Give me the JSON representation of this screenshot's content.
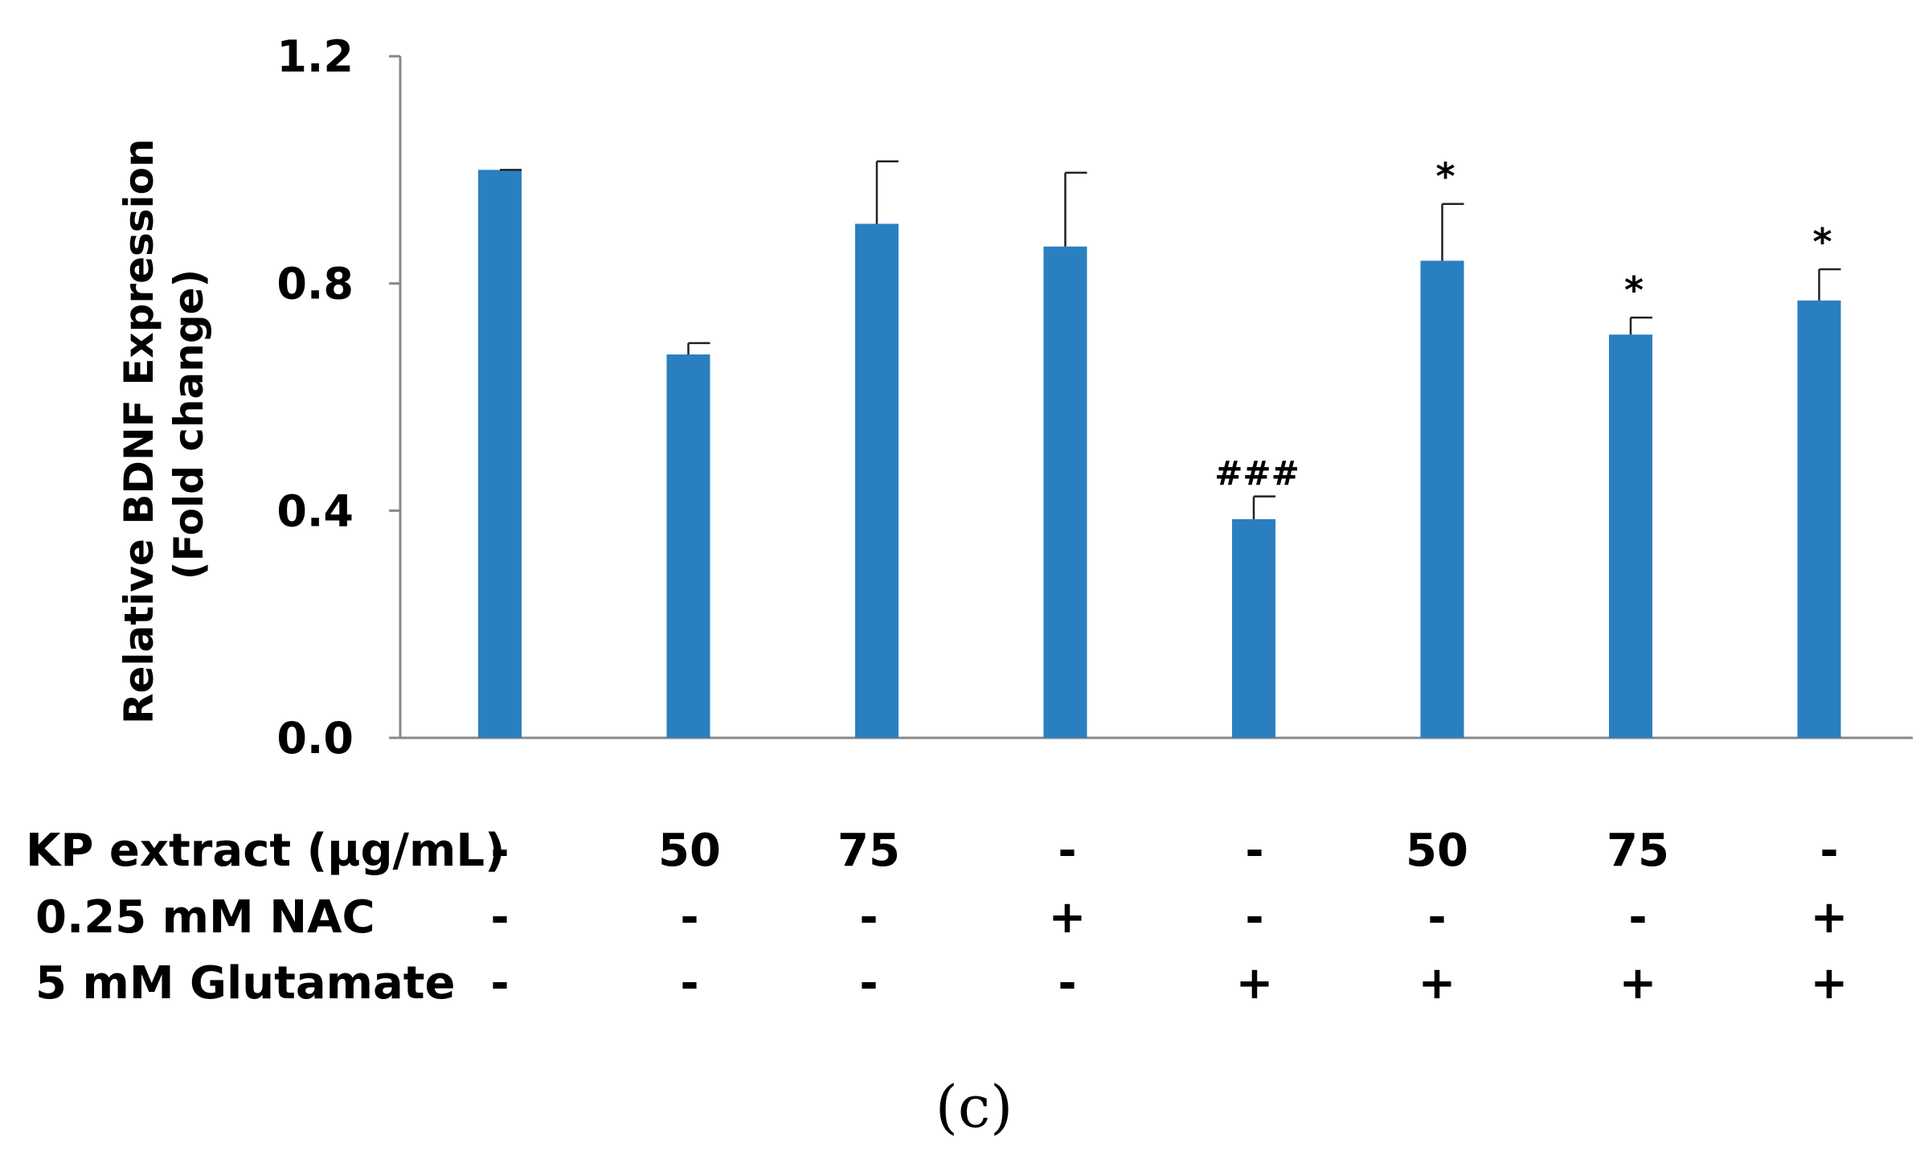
{
  "chart_data": {
    "type": "bar",
    "ylabel_lines": [
      "Relative BDNF Expression",
      "(Fold change)"
    ],
    "ylim": [
      0.0,
      1.2
    ],
    "yticks": [
      "0.0",
      "0.4",
      "0.8",
      "1.2"
    ],
    "grid": false,
    "bar_color": "#2a7fc1",
    "values": [
      1.0,
      0.675,
      0.905,
      0.865,
      0.385,
      0.84,
      0.71,
      0.77
    ],
    "errors": [
      0.0,
      0.02,
      0.11,
      0.13,
      0.04,
      0.1,
      0.03,
      0.055
    ],
    "annotations": [
      "",
      "",
      "",
      "",
      "###",
      "*",
      "*",
      "*"
    ],
    "conditions": [
      {
        "label": "KP extract (µg/mL)",
        "values": [
          "-",
          "50",
          "75",
          "-",
          "-",
          "50",
          "75",
          "-"
        ]
      },
      {
        "label": "0.25 mM NAC",
        "values": [
          "-",
          "-",
          "-",
          "+",
          "-",
          "-",
          "-",
          "+"
        ]
      },
      {
        "label": "5 mM Glutamate",
        "values": [
          "-",
          "-",
          "-",
          "-",
          "+",
          "+",
          "+",
          "+"
        ]
      }
    ],
    "panel_label": "(c)"
  }
}
